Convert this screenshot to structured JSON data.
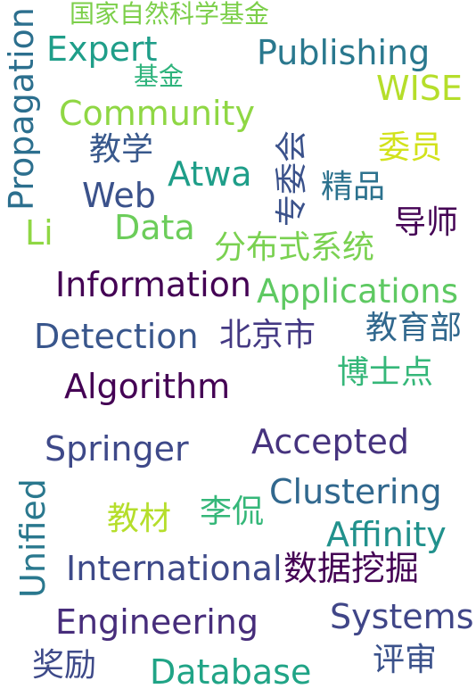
{
  "words": [
    {
      "text": "国家自然科学基金",
      "color": "#7ccf4a"
    },
    {
      "text": "Propagation",
      "color": "#2c6f8e"
    },
    {
      "text": "Expert",
      "color": "#1f9e89"
    },
    {
      "text": "Publishing",
      "color": "#2a788e"
    },
    {
      "text": "基金",
      "color": "#2eb37c"
    },
    {
      "text": "WISE",
      "color": "#b5de2b"
    },
    {
      "text": "Community",
      "color": "#8fd744"
    },
    {
      "text": "教学",
      "color": "#38588c"
    },
    {
      "text": "专委会",
      "color": "#3b528b"
    },
    {
      "text": "委员",
      "color": "#d2e21b"
    },
    {
      "text": "Atwa",
      "color": "#1f9e89"
    },
    {
      "text": "Web",
      "color": "#3b528b"
    },
    {
      "text": "精品",
      "color": "#2c728e"
    },
    {
      "text": "导师",
      "color": "#440154"
    },
    {
      "text": "Li",
      "color": "#8fd744"
    },
    {
      "text": "Data",
      "color": "#6ccd5a"
    },
    {
      "text": "分布式系统",
      "color": "#7ad151"
    },
    {
      "text": "Information",
      "color": "#440154"
    },
    {
      "text": "Applications",
      "color": "#5ec962"
    },
    {
      "text": "Detection",
      "color": "#39568c"
    },
    {
      "text": "北京市",
      "color": "#443983"
    },
    {
      "text": "教育部",
      "color": "#31688e"
    },
    {
      "text": "博士点",
      "color": "#35b779"
    },
    {
      "text": "Algorithm",
      "color": "#440154"
    },
    {
      "text": "Springer",
      "color": "#3e4989"
    },
    {
      "text": "Accepted",
      "color": "#46337e"
    },
    {
      "text": "Unified",
      "color": "#2a788e"
    },
    {
      "text": "Clustering",
      "color": "#31688e"
    },
    {
      "text": "教材",
      "color": "#b5de2b"
    },
    {
      "text": "李侃",
      "color": "#35b779"
    },
    {
      "text": "Affinity",
      "color": "#21918c"
    },
    {
      "text": "International",
      "color": "#3e4a89"
    },
    {
      "text": "数据挖掘",
      "color": "#440154"
    },
    {
      "text": "Engineering",
      "color": "#472d7b"
    },
    {
      "text": "Systems",
      "color": "#404688"
    },
    {
      "text": "奖励",
      "color": "#3e4a89"
    },
    {
      "text": "Database",
      "color": "#20a486"
    },
    {
      "text": "评审",
      "color": "#3b528b"
    }
  ]
}
